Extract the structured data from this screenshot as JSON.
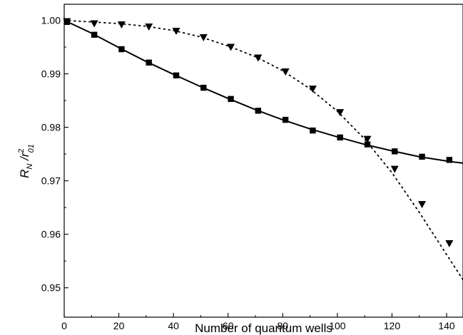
{
  "chart_data": {
    "type": "scatter",
    "xlabel": "Number of quantum wells",
    "ylabel": {
      "main": "R",
      "sub1": "N",
      "slash": " /r",
      "sup": "2",
      "sub2": "01"
    },
    "xlim": [
      0,
      146
    ],
    "ylim": [
      0.9445,
      1.003
    ],
    "xticks": [
      0,
      20,
      40,
      60,
      80,
      100,
      120,
      140
    ],
    "yticks": [
      0.95,
      0.96,
      0.97,
      0.98,
      0.99,
      1.0
    ],
    "ytick_labels": [
      "0.95",
      "0.96",
      "0.97",
      "0.98",
      "0.99",
      "1.00"
    ],
    "series": [
      {
        "marker": "square",
        "line": "solid",
        "x": [
          1,
          11,
          21,
          31,
          41,
          51,
          61,
          71,
          81,
          91,
          101,
          111,
          121,
          131,
          141
        ],
        "y": [
          0.9997,
          0.9973,
          0.9946,
          0.9921,
          0.9897,
          0.9874,
          0.9853,
          0.9831,
          0.9814,
          0.9794,
          0.9781,
          0.9768,
          0.9755,
          0.9745,
          0.9739
        ],
        "curve": {
          "x": [
            0,
            10,
            20,
            30,
            40,
            50,
            60,
            70,
            80,
            90,
            100,
            110,
            120,
            130,
            140,
            146
          ],
          "y": [
            1.0,
            0.9976,
            0.9949,
            0.9923,
            0.9899,
            0.9876,
            0.9854,
            0.9833,
            0.9814,
            0.9797,
            0.9782,
            0.9768,
            0.9756,
            0.9745,
            0.9737,
            0.9733
          ]
        }
      },
      {
        "marker": "triangle-down",
        "line": "dotted",
        "x": [
          1,
          11,
          21,
          31,
          41,
          51,
          61,
          71,
          81,
          91,
          101,
          111,
          121,
          131,
          141
        ],
        "y": [
          0.9998,
          0.9994,
          0.9992,
          0.9988,
          0.998,
          0.9968,
          0.995,
          0.993,
          0.9904,
          0.9872,
          0.9828,
          0.9778,
          0.9722,
          0.9656,
          0.9583
        ],
        "curve": {
          "x": [
            0,
            10,
            20,
            30,
            40,
            50,
            60,
            70,
            80,
            90,
            100,
            110,
            120,
            130,
            140,
            146
          ],
          "y": [
            1.0,
            0.9997,
            0.9994,
            0.9989,
            0.9981,
            0.9969,
            0.9952,
            0.9932,
            0.9906,
            0.9872,
            0.983,
            0.9778,
            0.9715,
            0.9641,
            0.9562,
            0.9515
          ]
        }
      }
    ],
    "colors": {
      "axis": "#000000",
      "marks": "#000000"
    },
    "grid": false,
    "legend": "none"
  }
}
